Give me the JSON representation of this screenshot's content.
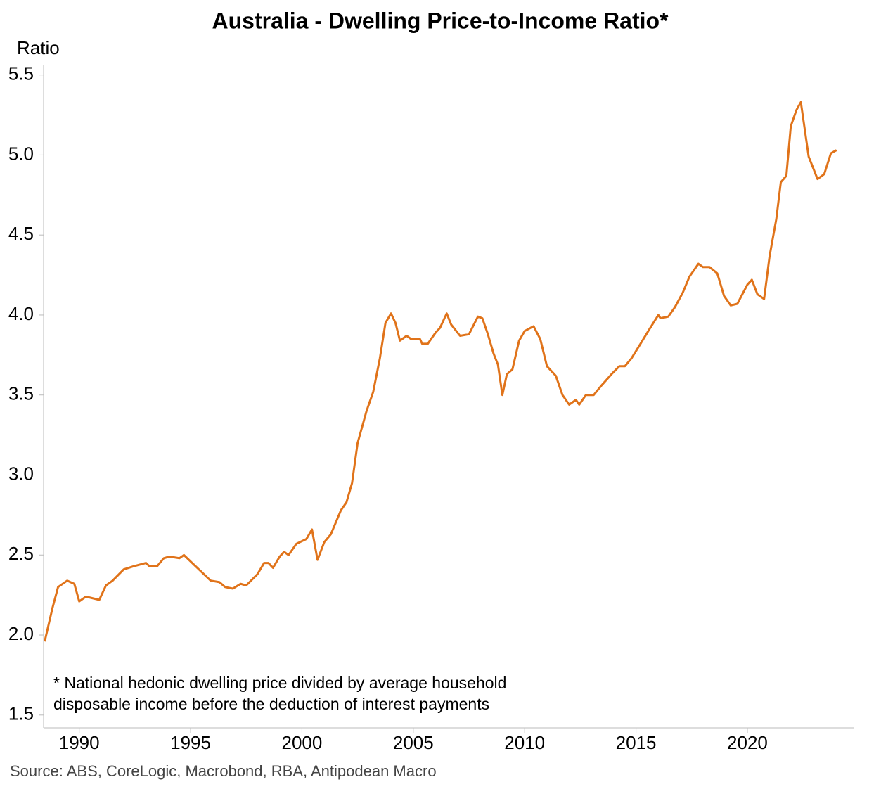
{
  "chart_data": {
    "type": "line",
    "title": "Australia - Dwelling Price-to-Income Ratio*",
    "y_axis_label": "Ratio",
    "note": [
      "* National hedonic dwelling price divided by average household",
      "disposable income before the deduction of interest payments"
    ],
    "source": "Source: ABS, CoreLogic, Macrobond, RBA, Antipodean Macro",
    "x": [
      1988.45,
      1988.8,
      1989.05,
      1989.46,
      1989.78,
      1990.0,
      1990.3,
      1990.9,
      1991.2,
      1991.5,
      1992.0,
      1992.45,
      1993.0,
      1993.15,
      1993.5,
      1993.8,
      1994.05,
      1994.5,
      1994.7,
      1995.15,
      1995.6,
      1995.9,
      1996.3,
      1996.55,
      1996.9,
      1997.25,
      1997.5,
      1998.0,
      1998.3,
      1998.5,
      1998.7,
      1999.0,
      1999.2,
      1999.4,
      1999.75,
      2000.2,
      2000.45,
      2000.7,
      2001.0,
      2001.3,
      2001.75,
      2002.0,
      2002.25,
      2002.5,
      2002.9,
      2003.2,
      2003.5,
      2003.75,
      2004.0,
      2004.2,
      2004.4,
      2004.7,
      2004.9,
      2005.3,
      2005.4,
      2005.65,
      2006.0,
      2006.2,
      2006.5,
      2006.7,
      2007.1,
      2007.5,
      2007.9,
      2008.1,
      2008.35,
      2008.6,
      2008.8,
      2009.0,
      2009.2,
      2009.45,
      2009.75,
      2010.0,
      2010.4,
      2010.7,
      2011.0,
      2011.4,
      2011.7,
      2012.0,
      2012.3,
      2012.45,
      2012.75,
      2013.1,
      2013.45,
      2013.9,
      2014.25,
      2014.5,
      2014.8,
      2015.2,
      2015.55,
      2016.0,
      2016.1,
      2016.45,
      2016.75,
      2017.1,
      2017.4,
      2017.8,
      2018.0,
      2018.3,
      2018.65,
      2018.95,
      2019.25,
      2019.55,
      2020.0,
      2020.2,
      2020.45,
      2020.75,
      2021.0,
      2021.3,
      2021.5,
      2021.75,
      2021.95,
      2022.2,
      2022.4,
      2022.75,
      2023.15,
      2023.45,
      2023.75,
      2024.0
    ],
    "series": [
      {
        "name": "Price-to-Income Ratio",
        "color": "#e0731a",
        "values": [
          1.96,
          2.17,
          2.3,
          2.34,
          2.32,
          2.21,
          2.24,
          2.22,
          2.31,
          2.34,
          2.41,
          2.43,
          2.45,
          2.43,
          2.43,
          2.48,
          2.49,
          2.48,
          2.5,
          2.44,
          2.38,
          2.34,
          2.33,
          2.3,
          2.29,
          2.32,
          2.31,
          2.38,
          2.45,
          2.45,
          2.42,
          2.49,
          2.52,
          2.5,
          2.57,
          2.6,
          2.66,
          2.47,
          2.58,
          2.63,
          2.78,
          2.83,
          2.95,
          3.2,
          3.4,
          3.52,
          3.73,
          3.95,
          4.01,
          3.95,
          3.84,
          3.87,
          3.85,
          3.85,
          3.82,
          3.82,
          3.89,
          3.92,
          4.01,
          3.94,
          3.87,
          3.88,
          3.99,
          3.98,
          3.88,
          3.76,
          3.69,
          3.5,
          3.63,
          3.66,
          3.84,
          3.9,
          3.93,
          3.85,
          3.68,
          3.62,
          3.5,
          3.44,
          3.47,
          3.44,
          3.5,
          3.5,
          3.56,
          3.63,
          3.68,
          3.68,
          3.73,
          3.82,
          3.9,
          4.0,
          3.98,
          3.99,
          4.05,
          4.14,
          4.24,
          4.32,
          4.3,
          4.3,
          4.26,
          4.12,
          4.06,
          4.07,
          4.19,
          4.22,
          4.13,
          4.1,
          4.37,
          4.6,
          4.83,
          4.87,
          5.18,
          5.28,
          5.33,
          4.99,
          4.85,
          4.88,
          5.01,
          5.03
        ]
      }
    ],
    "xlim": [
      1988.4,
      2024.8
    ],
    "xticks": [
      1990,
      1995,
      2000,
      2005,
      2010,
      2015,
      2020
    ],
    "ylim": [
      1.42,
      5.56
    ],
    "yticks": [
      1.5,
      {
        "value": 2,
        "label": "2.0"
      },
      2.5,
      {
        "value": 3,
        "label": "3.0"
      },
      3.5,
      {
        "value": 4,
        "label": "4.0"
      },
      4.5,
      {
        "value": 5,
        "label": "5.0"
      },
      5.5
    ],
    "grid": false
  }
}
